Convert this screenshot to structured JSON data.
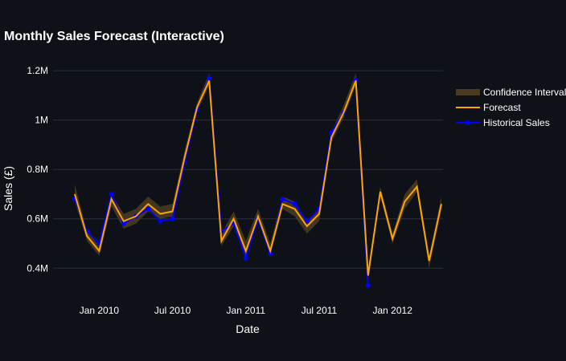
{
  "colors": {
    "background": "#0e1117",
    "grid": "#2b313c",
    "historical": "#0000ff",
    "forecast": "#ffa500",
    "confidence": "#4a3a20"
  },
  "chart_data": {
    "type": "line",
    "title": "Monthly Sales Forecast (Interactive)",
    "xlabel": "Date",
    "ylabel": "Sales (£)",
    "ylim": [
      0.31,
      1.21
    ],
    "y_ticks": [
      {
        "value": 0.4,
        "label": "0.4M"
      },
      {
        "value": 0.6,
        "label": "0.6M"
      },
      {
        "value": 0.8,
        "label": "0.8M"
      },
      {
        "value": 1.0,
        "label": "1M"
      },
      {
        "value": 1.2,
        "label": "1.2M"
      }
    ],
    "x_ticks": [
      {
        "index": 2,
        "label": "Jan 2010"
      },
      {
        "index": 8,
        "label": "Jul 2010"
      },
      {
        "index": 14,
        "label": "Jan 2011"
      },
      {
        "index": 20,
        "label": "Jul 2011"
      },
      {
        "index": 26,
        "label": "Jan 2012"
      }
    ],
    "grid": true,
    "legend_position": "top-right",
    "series": [
      {
        "name": "Confidence Interval",
        "type": "band",
        "lower": [
          0.67,
          0.51,
          0.45,
          0.65,
          0.56,
          0.58,
          0.63,
          0.6,
          0.61,
          0.83,
          1.03,
          1.14,
          0.49,
          0.57,
          0.44,
          0.59,
          0.45,
          0.64,
          0.61,
          0.54,
          0.59,
          0.91,
          1.01,
          1.14,
          0.35,
          0.69,
          0.5,
          0.64,
          0.71,
          0.4,
          0.64
        ],
        "upper": [
          0.74,
          0.55,
          0.49,
          0.7,
          0.62,
          0.64,
          0.69,
          0.65,
          0.66,
          0.88,
          1.07,
          1.19,
          0.54,
          0.63,
          0.51,
          0.64,
          0.5,
          0.69,
          0.67,
          0.59,
          0.64,
          0.95,
          1.06,
          1.19,
          0.4,
          0.73,
          0.54,
          0.7,
          0.76,
          0.45,
          0.69
        ]
      },
      {
        "name": "Forecast",
        "type": "line",
        "values": [
          0.7,
          0.53,
          0.47,
          0.68,
          0.59,
          0.61,
          0.66,
          0.62,
          0.63,
          0.85,
          1.05,
          1.16,
          0.51,
          0.6,
          0.47,
          0.61,
          0.47,
          0.66,
          0.64,
          0.57,
          0.62,
          0.93,
          1.03,
          1.16,
          0.37,
          0.71,
          0.52,
          0.67,
          0.73,
          0.43,
          0.66
        ]
      },
      {
        "name": "Historical Sales",
        "type": "line+markers",
        "values": [
          0.68,
          0.55,
          0.5,
          0.7,
          0.58,
          0.61,
          0.64,
          0.59,
          0.6,
          0.83,
          1.04,
          1.17,
          0.55,
          0.58,
          0.44,
          0.6,
          0.46,
          0.68,
          0.66,
          0.59,
          0.64,
          0.95,
          1.03,
          1.16,
          0.33
        ]
      }
    ]
  }
}
